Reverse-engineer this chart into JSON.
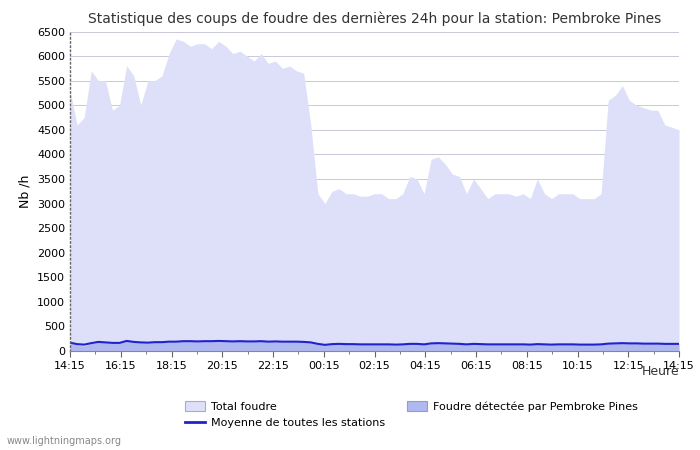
{
  "title": "Statistique des coups de foudre des dernières 24h pour la station: Pembroke Pines",
  "ylabel": "Nb /h",
  "xlabel": "Heure",
  "ylim": [
    0,
    6500
  ],
  "yticks": [
    0,
    500,
    1000,
    1500,
    2000,
    2500,
    3000,
    3500,
    4000,
    4500,
    5000,
    5500,
    6000,
    6500
  ],
  "xtick_labels": [
    "14:15",
    "16:15",
    "18:15",
    "20:15",
    "22:15",
    "00:15",
    "02:15",
    "04:15",
    "06:15",
    "08:15",
    "10:15",
    "12:15",
    "14:15"
  ],
  "bg_color": "#ffffff",
  "grid_color": "#c8c8d8",
  "fill_total_color": "#dde0f8",
  "fill_station_color": "#b0b8f0",
  "line_moyenne_color": "#2222cc",
  "watermark": "www.lightningmaps.org",
  "total_foudre": [
    5300,
    4600,
    4750,
    5700,
    5500,
    5500,
    4900,
    5000,
    5800,
    5600,
    5000,
    5500,
    5500,
    5600,
    6050,
    6350,
    6300,
    6200,
    6250,
    6250,
    6150,
    6300,
    6200,
    6050,
    6100,
    6000,
    5900,
    6050,
    5850,
    5900,
    5750,
    5800,
    5700,
    5650,
    4600,
    3200,
    3000,
    3250,
    3300,
    3200,
    3200,
    3150,
    3150,
    3200,
    3200,
    3100,
    3100,
    3200,
    3550,
    3500,
    3200,
    3900,
    3950,
    3800,
    3600,
    3550,
    3200,
    3500,
    3300,
    3100,
    3200,
    3200,
    3200,
    3150,
    3200,
    3100,
    3500,
    3200,
    3100,
    3200,
    3200,
    3200,
    3100,
    3100,
    3100,
    3200,
    5100,
    5200,
    5400,
    5100,
    5000,
    4950,
    4900,
    4900,
    4600,
    4550,
    4500
  ],
  "station_foudre": [
    170,
    120,
    100,
    150,
    180,
    170,
    160,
    160,
    200,
    180,
    170,
    165,
    175,
    175,
    185,
    185,
    195,
    195,
    190,
    195,
    195,
    200,
    195,
    190,
    195,
    190,
    190,
    195,
    185,
    190,
    185,
    185,
    185,
    180,
    170,
    140,
    120,
    135,
    140,
    135,
    135,
    130,
    130,
    130,
    130,
    130,
    125,
    130,
    140,
    140,
    130,
    150,
    155,
    150,
    145,
    140,
    130,
    140,
    135,
    130,
    130,
    130,
    130,
    130,
    130,
    125,
    135,
    130,
    125,
    130,
    130,
    130,
    125,
    125,
    125,
    130,
    145,
    150,
    155,
    150,
    150,
    145,
    145,
    145,
    140,
    140,
    140
  ],
  "moyenne": [
    170,
    140,
    130,
    160,
    185,
    175,
    165,
    165,
    205,
    185,
    175,
    170,
    180,
    180,
    190,
    190,
    200,
    200,
    195,
    200,
    200,
    205,
    200,
    195,
    200,
    195,
    195,
    200,
    190,
    195,
    190,
    190,
    190,
    185,
    175,
    145,
    125,
    140,
    145,
    140,
    140,
    135,
    135,
    135,
    135,
    135,
    130,
    135,
    145,
    145,
    135,
    155,
    160,
    155,
    150,
    145,
    135,
    145,
    140,
    135,
    135,
    135,
    135,
    135,
    135,
    130,
    140,
    135,
    130,
    135,
    135,
    135,
    130,
    130,
    130,
    135,
    150,
    155,
    160,
    155,
    155,
    150,
    150,
    150,
    145,
    145,
    145
  ]
}
